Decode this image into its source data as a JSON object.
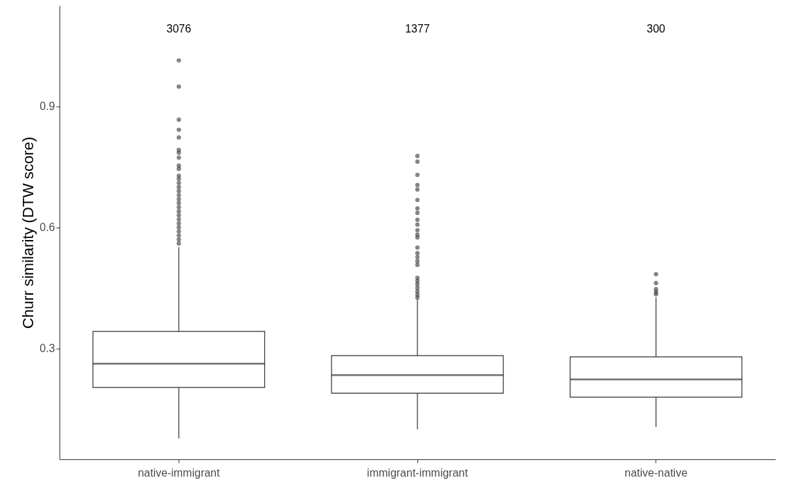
{
  "chart_data": {
    "type": "box",
    "ylabel": "Churr similarity (DTW score)",
    "categories": [
      "native-immigrant",
      "immigrant-immigrant",
      "native-native"
    ],
    "boxes": [
      {
        "low": 0.077,
        "q1": 0.203,
        "median": 0.262,
        "q3": 0.342,
        "high": 0.551,
        "outliers": [
          1.014,
          0.949,
          0.867,
          0.842,
          0.823,
          0.792,
          0.785,
          0.773,
          0.753,
          0.745,
          0.728,
          0.72,
          0.71,
          0.7,
          0.69,
          0.68,
          0.67,
          0.66,
          0.65,
          0.64,
          0.63,
          0.62,
          0.61,
          0.6,
          0.59,
          0.58,
          0.57,
          0.56
        ]
      },
      {
        "low": 0.099,
        "q1": 0.189,
        "median": 0.234,
        "q3": 0.282,
        "high": 0.422,
        "outliers": [
          0.777,
          0.763,
          0.73,
          0.705,
          0.694,
          0.668,
          0.647,
          0.636,
          0.619,
          0.607,
          0.593,
          0.582,
          0.575,
          0.55,
          0.536,
          0.526,
          0.516,
          0.507,
          0.475,
          0.467,
          0.459,
          0.45,
          0.441,
          0.433,
          0.426
        ]
      },
      {
        "low": 0.105,
        "q1": 0.179,
        "median": 0.223,
        "q3": 0.279,
        "high": 0.426,
        "outliers": [
          0.484,
          0.462,
          0.447,
          0.44,
          0.434
        ]
      }
    ],
    "ylim": [
      0.025,
      1.15
    ],
    "yticks": [
      0.3,
      0.6,
      0.9
    ],
    "annotations": [
      "3076",
      "1377",
      "300"
    ]
  }
}
